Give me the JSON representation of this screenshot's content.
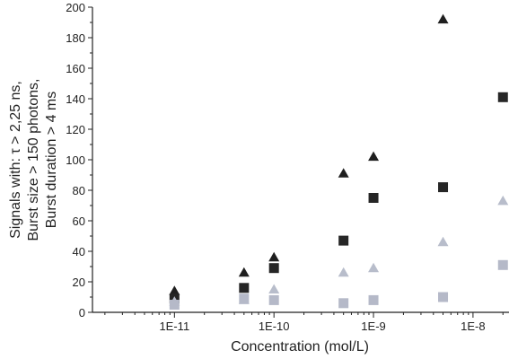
{
  "chart_data": {
    "type": "scatter",
    "xlabel": "Concentration (mol/L)",
    "ylabel_lines": [
      "Signals with: τ > 2,25 ns,",
      "Burst size > 150 photons,",
      "Burst duration > 4 ms"
    ],
    "x_scale": "log",
    "xlim": [
      1.5e-12,
      2.3e-08
    ],
    "ylim": [
      0,
      200
    ],
    "x_ticks": [
      {
        "value": 1e-11,
        "label": "1E-11"
      },
      {
        "value": 1e-10,
        "label": "1E-10"
      },
      {
        "value": 1e-09,
        "label": "1E-9"
      },
      {
        "value": 1e-08,
        "label": "1E-8"
      }
    ],
    "y_ticks": [
      {
        "value": 0,
        "label": "0"
      },
      {
        "value": 20,
        "label": "20"
      },
      {
        "value": 40,
        "label": "40"
      },
      {
        "value": 60,
        "label": "60"
      },
      {
        "value": 80,
        "label": "80"
      },
      {
        "value": 100,
        "label": "100"
      },
      {
        "value": 120,
        "label": "120"
      },
      {
        "value": 140,
        "label": "140"
      },
      {
        "value": 160,
        "label": "160"
      },
      {
        "value": 180,
        "label": "180"
      },
      {
        "value": 200,
        "label": "200"
      }
    ],
    "grid": false,
    "series": [
      {
        "marker": "triangle",
        "color": "#1f1f1f",
        "points": [
          [
            1e-11,
            14
          ],
          [
            5e-11,
            26
          ],
          [
            1e-10,
            36
          ],
          [
            5e-10,
            91
          ],
          [
            1e-09,
            102
          ],
          [
            5e-09,
            192
          ]
        ]
      },
      {
        "marker": "square",
        "color": "#262626",
        "points": [
          [
            1e-11,
            9
          ],
          [
            5e-11,
            16
          ],
          [
            1e-10,
            29
          ],
          [
            5e-10,
            47
          ],
          [
            1e-09,
            75
          ],
          [
            5e-09,
            82
          ],
          [
            2e-08,
            141
          ]
        ]
      },
      {
        "marker": "triangle",
        "color": "#b8bdcb",
        "points": [
          [
            1e-11,
            7
          ],
          [
            5e-11,
            8
          ],
          [
            1e-10,
            15
          ],
          [
            5e-10,
            26
          ],
          [
            1e-09,
            29
          ],
          [
            5e-09,
            46
          ],
          [
            2e-08,
            73
          ]
        ]
      },
      {
        "marker": "square",
        "color": "#b5b9c8",
        "points": [
          [
            1e-11,
            5
          ],
          [
            5e-11,
            9
          ],
          [
            1e-10,
            8
          ],
          [
            5e-10,
            6
          ],
          [
            1e-09,
            8
          ],
          [
            5e-09,
            10
          ],
          [
            2e-08,
            31
          ]
        ]
      }
    ]
  }
}
